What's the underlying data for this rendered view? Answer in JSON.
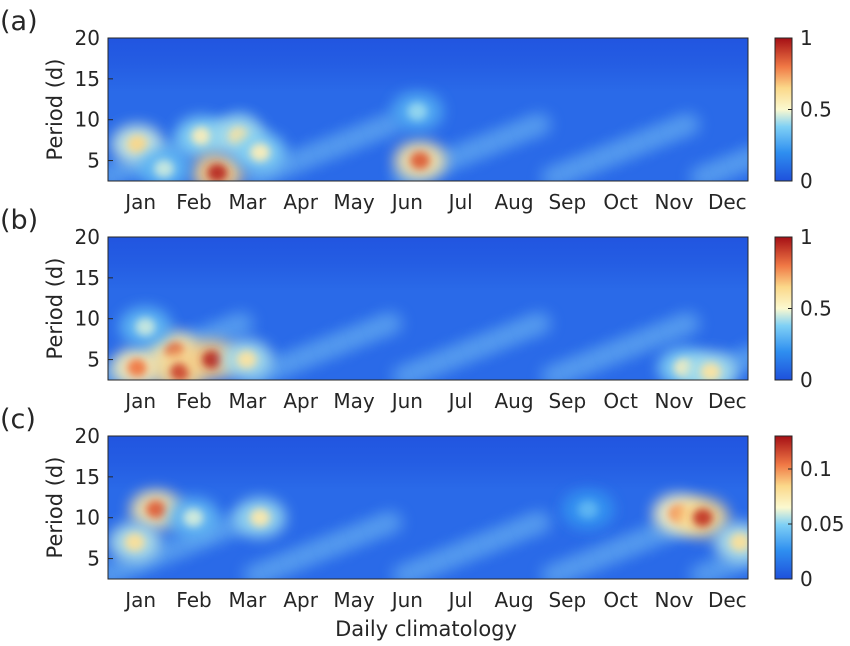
{
  "figure": {
    "xlabel": "Daily climatology"
  },
  "chart_data": [
    {
      "type": "heatmap",
      "panel_label": "(a)",
      "ylabel": "Period (d)",
      "y_ticks": [
        5,
        10,
        15,
        20
      ],
      "ylim": [
        2.5,
        20
      ],
      "months": [
        "Jan",
        "Feb",
        "Mar",
        "Apr",
        "May",
        "Jun",
        "Jul",
        "Aug",
        "Sep",
        "Oct",
        "Nov",
        "Dec"
      ],
      "colorbar": {
        "min": 0,
        "max": 1,
        "ticks": [
          0,
          0.5,
          1
        ],
        "tick_labels": [
          "0",
          "0.5",
          "1"
        ]
      },
      "hotspots": [
        {
          "month": 0.05,
          "period": 7,
          "value": 0.65
        },
        {
          "month": 1.25,
          "period": 8,
          "value": 0.55
        },
        {
          "month": 1.55,
          "period": 3.5,
          "value": 0.95
        },
        {
          "month": 1.95,
          "period": 8,
          "value": 0.6
        },
        {
          "month": 2.35,
          "period": 6,
          "value": 0.55
        },
        {
          "month": 0.55,
          "period": 4,
          "value": 0.45
        },
        {
          "month": 5.35,
          "period": 5,
          "value": 0.85
        },
        {
          "month": 5.3,
          "period": 11,
          "value": 0.4
        }
      ]
    },
    {
      "type": "heatmap",
      "panel_label": "(b)",
      "ylabel": "Period (d)",
      "y_ticks": [
        5,
        10,
        15,
        20
      ],
      "ylim": [
        2.5,
        20
      ],
      "months": [
        "Jan",
        "Feb",
        "Mar",
        "Apr",
        "May",
        "Jun",
        "Jul",
        "Aug",
        "Sep",
        "Oct",
        "Nov",
        "Dec"
      ],
      "colorbar": {
        "min": 0,
        "max": 1,
        "ticks": [
          0,
          0.5,
          1
        ],
        "tick_labels": [
          "0",
          "0.5",
          "1"
        ]
      },
      "hotspots": [
        {
          "month": 0.05,
          "period": 4,
          "value": 0.8
        },
        {
          "month": 0.75,
          "period": 6,
          "value": 0.85
        },
        {
          "month": 0.85,
          "period": 3.5,
          "value": 0.9
        },
        {
          "month": 1.45,
          "period": 5,
          "value": 0.95
        },
        {
          "month": 2.1,
          "period": 5,
          "value": 0.6
        },
        {
          "month": 0.2,
          "period": 9,
          "value": 0.45
        },
        {
          "month": 10.3,
          "period": 4,
          "value": 0.55
        },
        {
          "month": 10.8,
          "period": 3.5,
          "value": 0.6
        }
      ]
    },
    {
      "type": "heatmap",
      "panel_label": "(c)",
      "ylabel": "Period (d)",
      "y_ticks": [
        5,
        10,
        15,
        20
      ],
      "ylim": [
        2.5,
        20
      ],
      "months": [
        "Jan",
        "Feb",
        "Mar",
        "Apr",
        "May",
        "Jun",
        "Jul",
        "Aug",
        "Sep",
        "Oct",
        "Nov",
        "Dec"
      ],
      "colorbar": {
        "min": 0,
        "max": 0.13,
        "ticks": [
          0,
          0.05,
          0.1
        ],
        "tick_labels": [
          "0",
          "0.05",
          "0.1"
        ]
      },
      "hotspots": [
        {
          "month": 0.4,
          "period": 11,
          "value": 0.11
        },
        {
          "month": 1.1,
          "period": 10,
          "value": 0.06
        },
        {
          "month": 2.35,
          "period": 10,
          "value": 0.075
        },
        {
          "month": 10.2,
          "period": 10.5,
          "value": 0.1
        },
        {
          "month": 10.65,
          "period": 10,
          "value": 0.12
        },
        {
          "month": 11.35,
          "period": 7,
          "value": 0.08
        },
        {
          "month": 0.0,
          "period": 7,
          "value": 0.08
        },
        {
          "month": 8.5,
          "period": 11,
          "value": 0.04
        }
      ]
    }
  ]
}
